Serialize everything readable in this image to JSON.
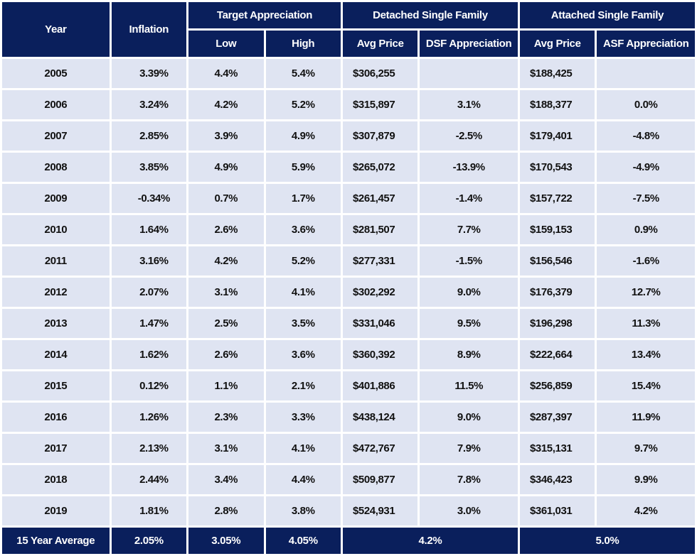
{
  "chart_data": {
    "type": "table",
    "header": {
      "year": "Year",
      "inflation": "Inflation",
      "target_appreciation": "Target Appreciation",
      "low": "Low",
      "high": "High",
      "detached": "Detached Single Family",
      "dsf_avg_price": "Avg Price",
      "dsf_appreciation": "DSF Appreciation",
      "attached": "Attached Single Family",
      "asf_avg_price": "Avg Price",
      "asf_appreciation": "ASF Appreciation"
    },
    "rows": [
      {
        "year": "2005",
        "inflation": "3.39%",
        "low": "4.4%",
        "high": "5.4%",
        "dsf_price": "$306,255",
        "dsf_appr": "",
        "asf_price": "$188,425",
        "asf_appr": ""
      },
      {
        "year": "2006",
        "inflation": "3.24%",
        "low": "4.2%",
        "high": "5.2%",
        "dsf_price": "$315,897",
        "dsf_appr": "3.1%",
        "asf_price": "$188,377",
        "asf_appr": "0.0%"
      },
      {
        "year": "2007",
        "inflation": "2.85%",
        "low": "3.9%",
        "high": "4.9%",
        "dsf_price": "$307,879",
        "dsf_appr": "-2.5%",
        "asf_price": "$179,401",
        "asf_appr": "-4.8%"
      },
      {
        "year": "2008",
        "inflation": "3.85%",
        "low": "4.9%",
        "high": "5.9%",
        "dsf_price": "$265,072",
        "dsf_appr": "-13.9%",
        "asf_price": "$170,543",
        "asf_appr": "-4.9%"
      },
      {
        "year": "2009",
        "inflation": "-0.34%",
        "low": "0.7%",
        "high": "1.7%",
        "dsf_price": "$261,457",
        "dsf_appr": "-1.4%",
        "asf_price": "$157,722",
        "asf_appr": "-7.5%"
      },
      {
        "year": "2010",
        "inflation": "1.64%",
        "low": "2.6%",
        "high": "3.6%",
        "dsf_price": "$281,507",
        "dsf_appr": "7.7%",
        "asf_price": "$159,153",
        "asf_appr": "0.9%"
      },
      {
        "year": "2011",
        "inflation": "3.16%",
        "low": "4.2%",
        "high": "5.2%",
        "dsf_price": "$277,331",
        "dsf_appr": "-1.5%",
        "asf_price": "$156,546",
        "asf_appr": "-1.6%"
      },
      {
        "year": "2012",
        "inflation": "2.07%",
        "low": "3.1%",
        "high": "4.1%",
        "dsf_price": "$302,292",
        "dsf_appr": "9.0%",
        "asf_price": "$176,379",
        "asf_appr": "12.7%"
      },
      {
        "year": "2013",
        "inflation": "1.47%",
        "low": "2.5%",
        "high": "3.5%",
        "dsf_price": "$331,046",
        "dsf_appr": "9.5%",
        "asf_price": "$196,298",
        "asf_appr": "11.3%"
      },
      {
        "year": "2014",
        "inflation": "1.62%",
        "low": "2.6%",
        "high": "3.6%",
        "dsf_price": "$360,392",
        "dsf_appr": "8.9%",
        "asf_price": "$222,664",
        "asf_appr": "13.4%"
      },
      {
        "year": "2015",
        "inflation": "0.12%",
        "low": "1.1%",
        "high": "2.1%",
        "dsf_price": "$401,886",
        "dsf_appr": "11.5%",
        "asf_price": "$256,859",
        "asf_appr": "15.4%"
      },
      {
        "year": "2016",
        "inflation": "1.26%",
        "low": "2.3%",
        "high": "3.3%",
        "dsf_price": "$438,124",
        "dsf_appr": "9.0%",
        "asf_price": "$287,397",
        "asf_appr": "11.9%"
      },
      {
        "year": "2017",
        "inflation": "2.13%",
        "low": "3.1%",
        "high": "4.1%",
        "dsf_price": "$472,767",
        "dsf_appr": "7.9%",
        "asf_price": "$315,131",
        "asf_appr": "9.7%"
      },
      {
        "year": "2018",
        "inflation": "2.44%",
        "low": "3.4%",
        "high": "4.4%",
        "dsf_price": "$509,877",
        "dsf_appr": "7.8%",
        "asf_price": "$346,423",
        "asf_appr": "9.9%"
      },
      {
        "year": "2019",
        "inflation": "1.81%",
        "low": "2.8%",
        "high": "3.8%",
        "dsf_price": "$524,931",
        "dsf_appr": "3.0%",
        "asf_price": "$361,031",
        "asf_appr": "4.2%"
      }
    ],
    "footer": {
      "label": "15 Year Average",
      "inflation": "2.05%",
      "low": "3.05%",
      "high": "4.05%",
      "dsf": "4.2%",
      "asf": "5.0%"
    }
  },
  "colors": {
    "header_bg": "#0a1f5c",
    "header_text": "#ffffff",
    "cell_bg": "#dfe4f2",
    "cell_text": "#111111"
  }
}
